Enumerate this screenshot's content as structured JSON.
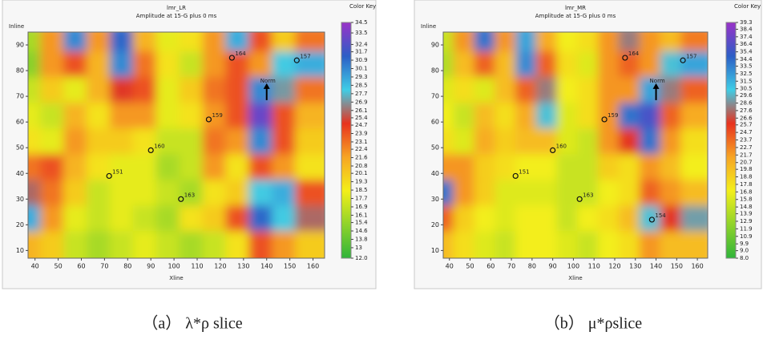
{
  "chart_data": [
    {
      "type": "heatmap",
      "title": "lmr_LR",
      "subtitle": "Amplitude at 15-G plus 0 ms",
      "x_label": "Xline",
      "y_label": "Inline",
      "colorbar_label": "Color Key",
      "caption": "（a） λ*ρ slice",
      "xlim": [
        37,
        165
      ],
      "ylim": [
        7,
        95
      ],
      "xticks": [
        40,
        50,
        60,
        70,
        80,
        90,
        100,
        110,
        120,
        130,
        140,
        150,
        160
      ],
      "yticks": [
        10,
        20,
        30,
        40,
        50,
        60,
        70,
        80,
        90
      ],
      "clim": [
        12,
        34.5
      ],
      "colorscale": [
        "#2fb43a",
        "#8fd32a",
        "#f3ef1a",
        "#f7a524",
        "#e8321e",
        "#3fcde6",
        "#2c5ec6",
        "#9a32c8"
      ],
      "cticks": [
        34.5,
        33.5,
        32.4,
        31.7,
        30.9,
        30.1,
        29.3,
        28.5,
        27.7,
        26.9,
        26.1,
        25.4,
        24.7,
        23.9,
        23.1,
        22.4,
        21.6,
        20.8,
        20.1,
        19.3,
        18.5,
        17.7,
        16.9,
        16.1,
        15.4,
        14.6,
        13.8,
        13.0,
        {
          "value": 12,
          "label": "12.0"
        }
      ],
      "x": [
        40,
        50,
        60,
        70,
        80,
        90,
        100,
        110,
        120,
        130,
        140,
        150,
        160
      ],
      "y": [
        90,
        80,
        70,
        60,
        50,
        40,
        30,
        20,
        10
      ],
      "z": [
        [
          16,
          22,
          30,
          22,
          31,
          21,
          18,
          19,
          22,
          29,
          24,
          20,
          23
        ],
        [
          15,
          22,
          24,
          21,
          30,
          23,
          19,
          17,
          22,
          24,
          22,
          28,
          29
        ],
        [
          17,
          20,
          18,
          21,
          25,
          24,
          18,
          20,
          23,
          24,
          30,
          27,
          23
        ],
        [
          18,
          17,
          21,
          19,
          22,
          22,
          18,
          19,
          22,
          24,
          33,
          24,
          21
        ],
        [
          19,
          18,
          22,
          20,
          20,
          19,
          17,
          17,
          23,
          22,
          30,
          24,
          20
        ],
        [
          23,
          24,
          21,
          19,
          18,
          18,
          16,
          17,
          22,
          19,
          24,
          22,
          19
        ],
        [
          26,
          23,
          20,
          17,
          18,
          18,
          17,
          16,
          19,
          20,
          28,
          29,
          24
        ],
        [
          29,
          22,
          18,
          17,
          18,
          17,
          16,
          19,
          20,
          24,
          31,
          28,
          26
        ],
        [
          21,
          20,
          17,
          16,
          17,
          18,
          17,
          16,
          17,
          19,
          24,
          22,
          20
        ]
      ],
      "wells": [
        {
          "label": "164",
          "x": 125,
          "y": 85
        },
        {
          "label": "157",
          "x": 153,
          "y": 84
        },
        {
          "label": "159",
          "x": 115,
          "y": 61
        },
        {
          "label": "160",
          "x": 90,
          "y": 49
        },
        {
          "label": "151",
          "x": 72,
          "y": 39
        },
        {
          "label": "163",
          "x": 103,
          "y": 30
        }
      ],
      "annotation": {
        "text": "Norm",
        "x": 140,
        "y": 76
      }
    },
    {
      "type": "heatmap",
      "title": "lmr_MR",
      "subtitle": "Amplitude at 15-G plus 0 ms",
      "x_label": "Xline",
      "y_label": "Inline",
      "colorbar_label": "Color Key",
      "caption": "（b） μ*ρslice",
      "xlim": [
        37,
        165
      ],
      "ylim": [
        7,
        95
      ],
      "xticks": [
        40,
        50,
        60,
        70,
        80,
        90,
        100,
        110,
        120,
        130,
        140,
        150,
        160
      ],
      "yticks": [
        10,
        20,
        30,
        40,
        50,
        60,
        70,
        80,
        90
      ],
      "clim": [
        8,
        39.3
      ],
      "colorscale": [
        "#2fb43a",
        "#8fd32a",
        "#f3ef1a",
        "#f7a524",
        "#e8321e",
        "#3fcde6",
        "#2c5ec6",
        "#9a32c8"
      ],
      "cticks": [
        39.3,
        38.4,
        37.4,
        36.4,
        35.4,
        34.4,
        33.5,
        32.5,
        31.5,
        30.5,
        29.6,
        28.6,
        27.6,
        26.6,
        25.7,
        24.7,
        23.7,
        22.7,
        21.7,
        20.7,
        19.8,
        18.8,
        17.8,
        16.8,
        15.8,
        14.8,
        13.9,
        12.9,
        11.9,
        10.9,
        9.9,
        {
          "value": 9,
          "label": "9.0"
        },
        {
          "value": 8,
          "label": "8.0"
        }
      ],
      "x": [
        40,
        50,
        60,
        70,
        80,
        90,
        100,
        110,
        120,
        130,
        140,
        150,
        160
      ],
      "y": [
        90,
        80,
        70,
        60,
        50,
        40,
        30,
        20,
        10
      ],
      "z": [
        [
          15,
          22,
          34,
          22,
          32,
          21,
          17,
          18,
          22,
          28,
          22,
          20,
          23
        ],
        [
          14,
          20,
          24,
          20,
          33,
          24,
          18,
          16,
          22,
          24,
          22,
          30,
          32
        ],
        [
          16,
          18,
          16,
          20,
          24,
          28,
          17,
          18,
          22,
          22,
          32,
          28,
          24
        ],
        [
          17,
          15,
          20,
          18,
          21,
          30,
          16,
          18,
          22,
          34,
          36,
          24,
          21
        ],
        [
          18,
          16,
          21,
          19,
          20,
          20,
          16,
          15,
          22,
          26,
          34,
          22,
          18
        ],
        [
          22,
          22,
          19,
          18,
          17,
          17,
          15,
          15,
          19,
          18,
          22,
          20,
          17
        ],
        [
          34,
          22,
          19,
          16,
          16,
          16,
          15,
          15,
          17,
          18,
          24,
          22,
          20
        ],
        [
          24,
          19,
          17,
          16,
          17,
          17,
          15,
          17,
          18,
          20,
          30,
          26,
          29
        ],
        [
          20,
          18,
          16,
          15,
          17,
          17,
          16,
          15,
          17,
          18,
          22,
          20,
          20
        ]
      ],
      "wells": [
        {
          "label": "164",
          "x": 125,
          "y": 85
        },
        {
          "label": "157",
          "x": 153,
          "y": 84
        },
        {
          "label": "159",
          "x": 115,
          "y": 61
        },
        {
          "label": "160",
          "x": 90,
          "y": 49
        },
        {
          "label": "151",
          "x": 72,
          "y": 39
        },
        {
          "label": "163",
          "x": 103,
          "y": 30
        },
        {
          "label": "154",
          "x": 138,
          "y": 22
        }
      ],
      "annotation": {
        "text": "Norm",
        "x": 140,
        "y": 76
      }
    }
  ]
}
